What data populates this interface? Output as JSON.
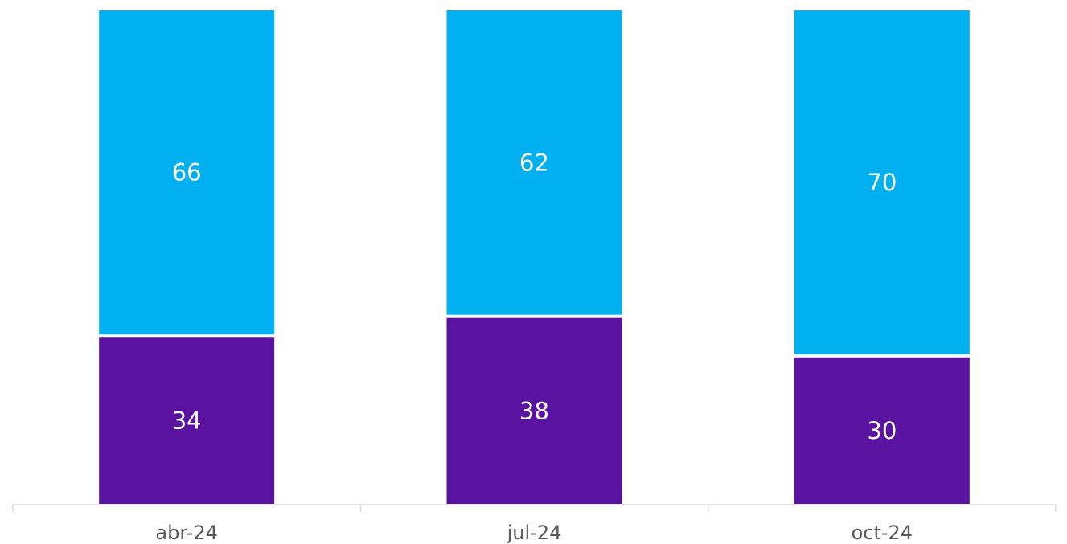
{
  "chart_data": {
    "type": "bar",
    "stacked": true,
    "categories": [
      "abr-24",
      "jul-24",
      "oct-24"
    ],
    "series": [
      {
        "values": [
          34,
          38,
          30
        ],
        "color": "#5a12a0"
      },
      {
        "values": [
          66,
          62,
          70
        ],
        "color": "#00b0f0"
      }
    ],
    "title": "",
    "xlabel": "",
    "ylabel": "",
    "ylim": [
      0,
      100
    ],
    "grid": false,
    "legend": "none",
    "data_labels": true
  }
}
